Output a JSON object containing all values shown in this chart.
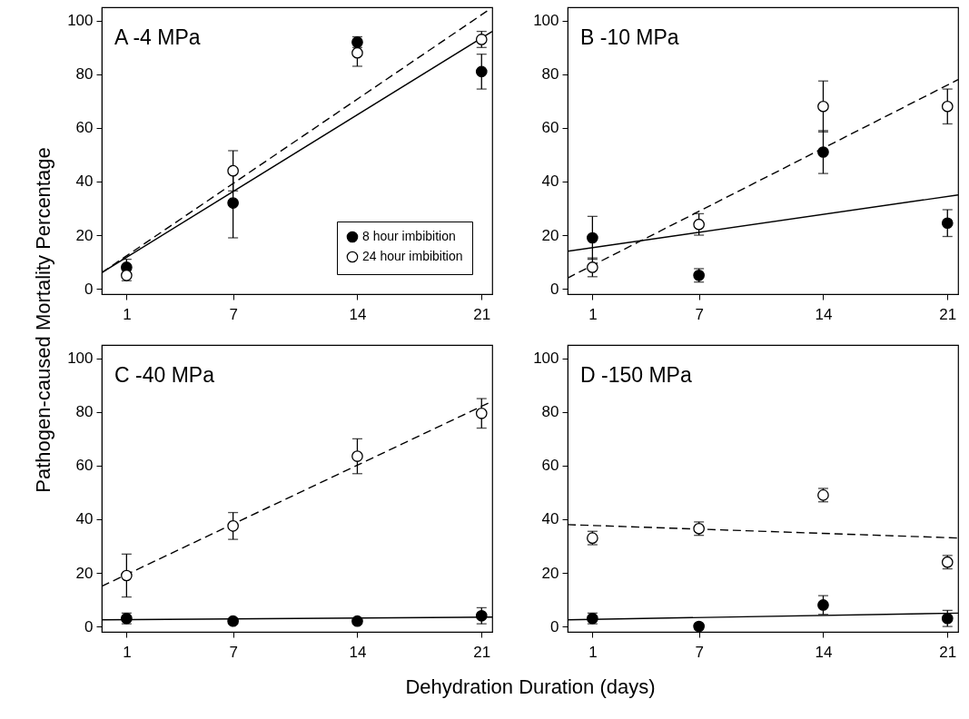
{
  "chart_data": [
    {
      "type": "scatter",
      "title": "A -4 MPa",
      "ylabel": "Pathogen-caused Mortality Percentage",
      "x": [
        1,
        7,
        14,
        21
      ],
      "xlim": [
        -0.4,
        21.6
      ],
      "ylim": [
        -2,
        105
      ],
      "xticks": [
        1,
        7,
        14,
        21
      ],
      "yticks": [
        0,
        20,
        40,
        60,
        80,
        100
      ],
      "legend": "bottom right",
      "marker": "circle",
      "series": [
        {
          "name": "8 hour imbibition",
          "color": "#000000",
          "values": [
            8,
            32,
            92,
            81
          ],
          "errors": [
            3,
            13,
            2,
            6.5
          ]
        },
        {
          "name": "24 hour imbibition",
          "color": "#ffffff",
          "values": [
            5,
            44,
            88,
            93
          ],
          "errors": [
            2,
            7.5,
            5,
            3
          ]
        },
        {
          "type": "line",
          "marker": "none",
          "color": "#000000",
          "line_style": "solid",
          "x": [
            -0.4,
            21.6
          ],
          "values": [
            6,
            96
          ]
        },
        {
          "type": "line",
          "marker": "none",
          "color": "#000000",
          "line_style": "dashed",
          "x": [
            -0.4,
            21.4
          ],
          "values": [
            6,
            104
          ]
        }
      ]
    },
    {
      "type": "scatter",
      "title": "B -10 MPa",
      "x": [
        1,
        7,
        14,
        21
      ],
      "xlim": [
        -0.4,
        21.6
      ],
      "ylim": [
        -2,
        105
      ],
      "xticks": [
        1,
        7,
        14,
        21
      ],
      "yticks": [
        0,
        20,
        40,
        60,
        80,
        100
      ],
      "marker": "circle",
      "series": [
        {
          "color": "#000000",
          "values": [
            19,
            5,
            51,
            24.5
          ],
          "errors": [
            8,
            2.5,
            8,
            5
          ]
        },
        {
          "color": "#ffffff",
          "values": [
            8,
            24,
            68,
            68
          ],
          "errors": [
            3.5,
            4,
            9.5,
            6.5
          ]
        },
        {
          "type": "line",
          "marker": "none",
          "color": "#000000",
          "line_style": "solid",
          "x": [
            -0.4,
            21.6
          ],
          "values": [
            14,
            35
          ]
        },
        {
          "type": "line",
          "marker": "none",
          "color": "#000000",
          "line_style": "dashed",
          "x": [
            -0.4,
            21.6
          ],
          "values": [
            4,
            78
          ]
        }
      ]
    },
    {
      "type": "scatter",
      "title": "C -40 MPa",
      "xlabel": "Dehydration Duration (days)",
      "x": [
        1,
        7,
        14,
        21
      ],
      "xlim": [
        -0.4,
        21.6
      ],
      "ylim": [
        -2,
        105
      ],
      "xticks": [
        1,
        7,
        14,
        21
      ],
      "yticks": [
        0,
        20,
        40,
        60,
        80,
        100
      ],
      "marker": "circle",
      "series": [
        {
          "color": "#000000",
          "values": [
            3,
            2,
            2,
            4
          ],
          "errors": [
            2,
            1,
            1,
            3
          ]
        },
        {
          "color": "#ffffff",
          "values": [
            19,
            37.5,
            63.5,
            79.5
          ],
          "errors": [
            8,
            5,
            6.5,
            5.5
          ]
        },
        {
          "type": "line",
          "marker": "none",
          "color": "#000000",
          "line_style": "solid",
          "x": [
            -0.4,
            21.6
          ],
          "values": [
            2.5,
            3.5
          ]
        },
        {
          "type": "line",
          "marker": "none",
          "color": "#000000",
          "line_style": "dashed",
          "x": [
            -0.4,
            21.6
          ],
          "values": [
            15,
            84
          ]
        }
      ]
    },
    {
      "type": "scatter",
      "title": "D -150 MPa",
      "x": [
        1,
        7,
        14,
        21
      ],
      "xlim": [
        -0.4,
        21.6
      ],
      "ylim": [
        -2,
        105
      ],
      "xticks": [
        1,
        7,
        14,
        21
      ],
      "yticks": [
        0,
        20,
        40,
        60,
        80,
        100
      ],
      "marker": "circle",
      "series": [
        {
          "color": "#000000",
          "values": [
            3,
            0,
            8,
            3
          ],
          "errors": [
            2,
            1,
            3.5,
            3
          ]
        },
        {
          "color": "#ffffff",
          "values": [
            33,
            36.5,
            49,
            24
          ],
          "errors": [
            2.5,
            2.5,
            2.5,
            2.5
          ]
        },
        {
          "type": "line",
          "marker": "none",
          "color": "#000000",
          "line_style": "solid",
          "x": [
            -0.4,
            21.6
          ],
          "values": [
            2.5,
            5
          ]
        },
        {
          "type": "line",
          "marker": "none",
          "color": "#000000",
          "line_style": "dashed",
          "x": [
            -0.4,
            21.6
          ],
          "values": [
            38,
            33
          ]
        }
      ]
    }
  ]
}
